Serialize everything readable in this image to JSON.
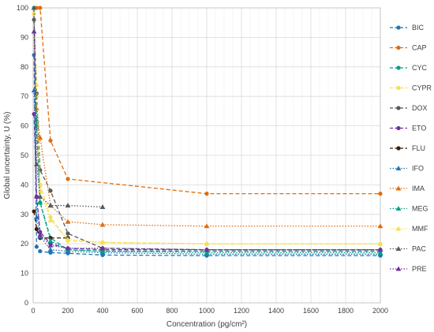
{
  "chart_data": {
    "type": "line",
    "xlabel": "Concentration (pg/cm²)",
    "ylabel": "Global uncertainty, U (%)",
    "xlim": [
      0,
      2000
    ],
    "ylim": [
      0,
      100
    ],
    "xticks": [
      0,
      200,
      400,
      600,
      800,
      1000,
      1200,
      1400,
      1600,
      1800,
      2000
    ],
    "yticks": [
      0,
      10,
      20,
      30,
      40,
      50,
      60,
      70,
      80,
      90,
      100
    ],
    "grid": true,
    "legend_position": "right",
    "series": [
      {
        "name": "BIC",
        "color": "#1f77b4",
        "dash": "dash",
        "marker": "circle",
        "x": [
          5,
          20,
          40,
          100,
          200,
          400,
          1000,
          2000
        ],
        "y": [
          84,
          19,
          17.5,
          17,
          16.8,
          16.2,
          16,
          16
        ]
      },
      {
        "name": "CAP",
        "color": "#e36c0a",
        "dash": "dash",
        "marker": "circle",
        "x": [
          20,
          40,
          100,
          200,
          1000,
          2000
        ],
        "y": [
          100,
          100,
          55,
          42,
          37,
          37
        ]
      },
      {
        "name": "CYC",
        "color": "#00a087",
        "dash": "dash",
        "marker": "circle",
        "x": [
          5,
          20,
          40,
          100,
          200,
          400,
          1000,
          2000
        ],
        "y": [
          100,
          60,
          34,
          22,
          18,
          17.5,
          17.5,
          17.5
        ]
      },
      {
        "name": "CYPR",
        "color": "#f5e050",
        "dash": "dash",
        "marker": "circle",
        "x": [
          5,
          20,
          40,
          100,
          200,
          400,
          1000,
          2000
        ],
        "y": [
          98,
          70,
          40,
          29,
          21,
          20.5,
          20,
          20
        ]
      },
      {
        "name": "DOX",
        "color": "#595959",
        "dash": "dash",
        "marker": "circle",
        "x": [
          5,
          20,
          40,
          100,
          200,
          400,
          1000,
          2000
        ],
        "y": [
          96,
          71,
          45,
          38,
          23.5,
          18.5,
          18,
          18
        ]
      },
      {
        "name": "ETO",
        "color": "#7030a0",
        "dash": "dash",
        "marker": "circle",
        "x": [
          5,
          20,
          40,
          100,
          200,
          400,
          1000,
          2000
        ],
        "y": [
          64,
          36,
          24,
          20,
          18.5,
          18,
          18,
          18
        ]
      },
      {
        "name": "FLU",
        "color": "#3c1f0a",
        "dash": "dash",
        "marker": "circle",
        "x": [
          5,
          20,
          40,
          100,
          200
        ],
        "y": [
          31,
          25,
          22,
          22,
          22
        ]
      },
      {
        "name": "IFO",
        "color": "#1f77b4",
        "dash": "dot",
        "marker": "triangle",
        "x": [
          5,
          20,
          40,
          100,
          200,
          400,
          1000,
          2000
        ],
        "y": [
          72,
          29,
          22.5,
          18,
          17.5,
          17,
          16.5,
          16.5
        ]
      },
      {
        "name": "IMA",
        "color": "#e36c0a",
        "dash": "dot",
        "marker": "triangle",
        "x": [
          5,
          20,
          40,
          100,
          200,
          400,
          1000,
          2000
        ],
        "y": [
          100,
          66,
          56,
          33,
          27.5,
          26.5,
          26,
          26
        ]
      },
      {
        "name": "MEG",
        "color": "#00a087",
        "dash": "dot",
        "marker": "triangle",
        "x": [
          5,
          20,
          40,
          100,
          200,
          400,
          1000,
          2000
        ],
        "y": [
          100,
          62,
          34,
          21,
          18,
          17.5,
          17,
          17
        ]
      },
      {
        "name": "MMF",
        "color": "#f5e050",
        "dash": "dot",
        "marker": "triangle",
        "x": [
          5,
          20,
          40,
          100,
          200,
          400,
          1000,
          2000
        ],
        "y": [
          100,
          74,
          38,
          28,
          21.5,
          20.5,
          20,
          20
        ]
      },
      {
        "name": "PAC",
        "color": "#595959",
        "dash": "dot",
        "marker": "triangle",
        "x": [
          5,
          20,
          40,
          100,
          200,
          400
        ],
        "y": [
          100,
          47,
          36,
          33,
          33,
          32.5
        ]
      },
      {
        "name": "PRE",
        "color": "#7030a0",
        "dash": "dot",
        "marker": "triangle",
        "x": [
          5,
          20,
          40,
          100,
          200,
          400,
          1000,
          2000
        ],
        "y": [
          92,
          36,
          23,
          19.5,
          18.5,
          18.5,
          18,
          18
        ]
      }
    ]
  }
}
